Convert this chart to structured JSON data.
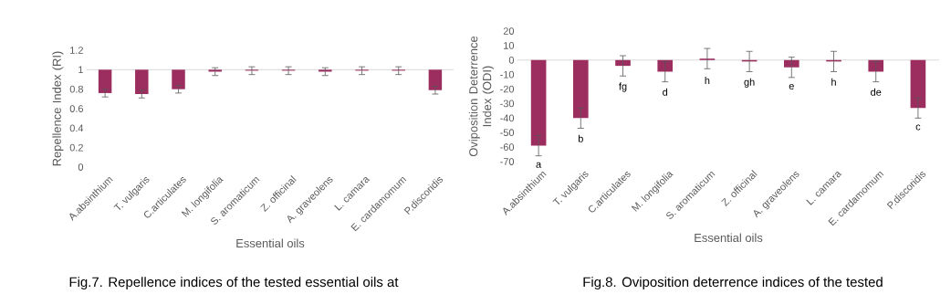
{
  "chart_data": [
    {
      "type": "bar",
      "xlabel": "Essential oils",
      "ylabel": "Repellence Index (RI)",
      "categories": [
        "A.absinthium",
        "T. vulgaris",
        "C.articulates",
        "M. longifolia",
        "S. aromaticum",
        "Z. officinal",
        "A. graveolens",
        "L. camara",
        "E. cardamomum",
        "P.discoridis"
      ],
      "values": [
        -0.24,
        -0.25,
        -0.2,
        -0.02,
        -0.01,
        -0.01,
        -0.02,
        -0.01,
        -0.01,
        -0.21
      ],
      "base": [
        1,
        1,
        1,
        1,
        1,
        1,
        1,
        1,
        1,
        1
      ],
      "errors": [
        0.04,
        0.04,
        0.04,
        0.04,
        0.04,
        0.04,
        0.04,
        0.04,
        0.04,
        0.04
      ],
      "color": "#9b2d5f",
      "ylim": [
        0,
        1.2
      ],
      "yticks": [
        0,
        0.2,
        0.4,
        0.6,
        0.8,
        1,
        1.2
      ],
      "ref_lines": [
        {
          "axis": "y",
          "value": 1,
          "color": "#d9d9d9"
        }
      ],
      "annotations": [
        "Fig.7. Repellence indices of the tested essential oils at"
      ]
    },
    {
      "type": "bar",
      "xlabel": "Essential oils",
      "ylabel": "Oviposition Deterrence Index (ODI)",
      "categories": [
        "A.absinthium",
        "T. vulgaris",
        "C.articulates",
        "M. longifolia",
        "S. aromaticum",
        "Z. officinal",
        "A. graveolens",
        "L. camara",
        "E. cardamomum",
        "P.discoridis"
      ],
      "values": [
        -59,
        -40,
        -4,
        -8,
        1,
        -1,
        -5,
        -1,
        -8,
        -33
      ],
      "errors": [
        7,
        7,
        7,
        7,
        7,
        7,
        7,
        7,
        7,
        7
      ],
      "color": "#9b2d5f",
      "ylim": [
        -70,
        20
      ],
      "yticks": [
        -70,
        -60,
        -50,
        -40,
        -30,
        -20,
        -10,
        0,
        10,
        20
      ],
      "ref_lines": [
        {
          "axis": "y",
          "value": 0,
          "color": "#d9d9d9"
        }
      ],
      "annotations": [
        "a",
        "b",
        "fg",
        "d",
        "h",
        "gh",
        "e",
        "h",
        "de",
        "c",
        "Fig.8. Oviposition deterrence indices of the tested"
      ]
    }
  ]
}
